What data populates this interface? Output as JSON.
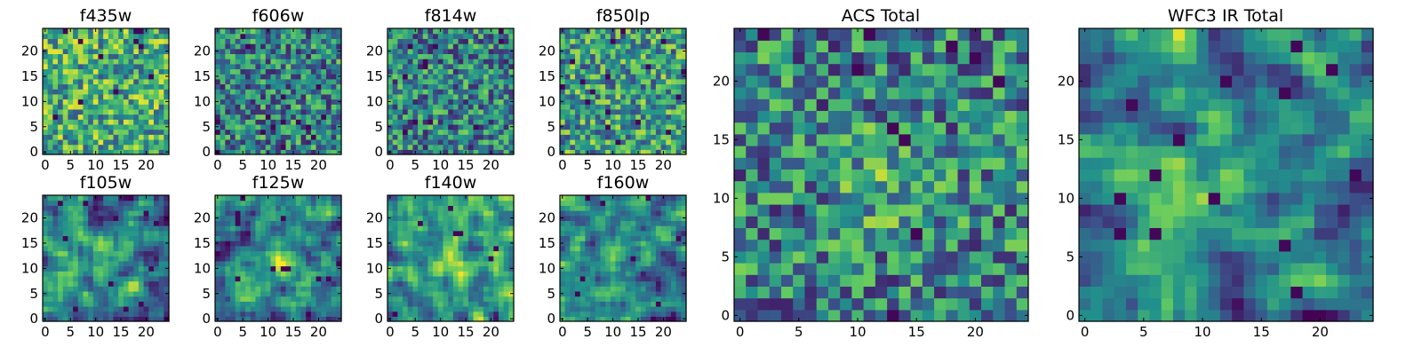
{
  "chart_data": [
    {
      "id": "f435w",
      "type": "heatmap",
      "title": "f435w",
      "grid_size": 25,
      "xticks": [
        "0",
        "5",
        "10",
        "15",
        "20"
      ],
      "yticks": [
        "0",
        "5",
        "10",
        "15",
        "20"
      ],
      "xlim": [
        0,
        25
      ],
      "ylim": [
        0,
        25
      ],
      "colormap": "viridis",
      "value_range": [
        0,
        1
      ],
      "pattern": "high uniform noise, mostly green-yellow",
      "seed": 11
    },
    {
      "id": "f606w",
      "type": "heatmap",
      "title": "f606w",
      "grid_size": 25,
      "xticks": [
        "0",
        "5",
        "10",
        "15",
        "20"
      ],
      "yticks": [
        "0",
        "5",
        "10",
        "15",
        "20"
      ],
      "xlim": [
        0,
        25
      ],
      "ylim": [
        0,
        25
      ],
      "colormap": "viridis",
      "value_range": [
        0,
        1
      ],
      "pattern": "uniform noise, green",
      "seed": 23
    },
    {
      "id": "f814w",
      "type": "heatmap",
      "title": "f814w",
      "grid_size": 25,
      "xticks": [
        "0",
        "5",
        "10",
        "15",
        "20"
      ],
      "yticks": [
        "0",
        "5",
        "10",
        "15",
        "20"
      ],
      "xlim": [
        0,
        25
      ],
      "ylim": [
        0,
        25
      ],
      "colormap": "viridis",
      "value_range": [
        0,
        1
      ],
      "pattern": "uniform noise, green",
      "seed": 37
    },
    {
      "id": "f850lp",
      "type": "heatmap",
      "title": "f850lp",
      "grid_size": 25,
      "xticks": [
        "0",
        "5",
        "10",
        "15",
        "20"
      ],
      "yticks": [
        "0",
        "5",
        "10",
        "15",
        "20"
      ],
      "xlim": [
        0,
        25
      ],
      "ylim": [
        0,
        25
      ],
      "colormap": "viridis",
      "value_range": [
        0,
        1
      ],
      "pattern": "uniform noise, green-yellow",
      "seed": 41
    },
    {
      "id": "f105w",
      "type": "heatmap",
      "title": "f105w",
      "grid_size": 25,
      "xticks": [
        "0",
        "5",
        "10",
        "15",
        "20"
      ],
      "yticks": [
        "0",
        "5",
        "10",
        "15",
        "20"
      ],
      "xlim": [
        0,
        25
      ],
      "ylim": [
        0,
        25
      ],
      "colormap": "viridis",
      "value_range": [
        0,
        1
      ],
      "pattern": "smoothed noise with faint central bright source",
      "seed": 53
    },
    {
      "id": "f125w",
      "type": "heatmap",
      "title": "f125w",
      "grid_size": 25,
      "xticks": [
        "0",
        "5",
        "10",
        "15",
        "20"
      ],
      "yticks": [
        "0",
        "5",
        "10",
        "15",
        "20"
      ],
      "xlim": [
        0,
        25
      ],
      "ylim": [
        0,
        25
      ],
      "colormap": "viridis",
      "value_range": [
        0,
        1
      ],
      "pattern": "smoothed noise with central bright source",
      "seed": 67
    },
    {
      "id": "f140w",
      "type": "heatmap",
      "title": "f140w",
      "grid_size": 25,
      "xticks": [
        "0",
        "5",
        "10",
        "15",
        "20"
      ],
      "yticks": [
        "0",
        "5",
        "10",
        "15",
        "20"
      ],
      "xlim": [
        0,
        25
      ],
      "ylim": [
        0,
        25
      ],
      "colormap": "viridis",
      "value_range": [
        0,
        1
      ],
      "pattern": "bright yellow-green field, central source",
      "seed": 79
    },
    {
      "id": "f160w",
      "type": "heatmap",
      "title": "f160w",
      "grid_size": 25,
      "xticks": [
        "0",
        "5",
        "10",
        "15",
        "20"
      ],
      "yticks": [
        "0",
        "5",
        "10",
        "15",
        "20"
      ],
      "xlim": [
        0,
        25
      ],
      "ylim": [
        0,
        25
      ],
      "colormap": "viridis",
      "value_range": [
        0,
        1
      ],
      "pattern": "smoothed noise, central bright source at x~13 y~11",
      "seed": 83
    },
    {
      "id": "acs_total",
      "type": "heatmap",
      "title": "ACS Total",
      "grid_size": 25,
      "xticks": [
        "0",
        "5",
        "10",
        "15",
        "20"
      ],
      "yticks": [
        "0",
        "5",
        "10",
        "15",
        "20"
      ],
      "xlim": [
        0,
        25
      ],
      "ylim": [
        0,
        25
      ],
      "colormap": "viridis",
      "value_range": [
        0,
        1
      ],
      "pattern": "noise with mild central brightening",
      "seed": 97
    },
    {
      "id": "wfc3_ir_total",
      "type": "heatmap",
      "title": "WFC3 IR Total",
      "grid_size": 25,
      "xticks": [
        "0",
        "5",
        "10",
        "15",
        "20"
      ],
      "yticks": [
        "0",
        "5",
        "10",
        "15",
        "20"
      ],
      "xlim": [
        0,
        25
      ],
      "ylim": [
        0,
        25
      ],
      "colormap": "viridis",
      "value_range": [
        0,
        1
      ],
      "pattern": "smoothed noise, bright source centered near x~12 y~12",
      "seed": 101
    }
  ],
  "colormap_stops": [
    "#440154",
    "#3b528b",
    "#21918c",
    "#5ec962",
    "#fde725"
  ]
}
